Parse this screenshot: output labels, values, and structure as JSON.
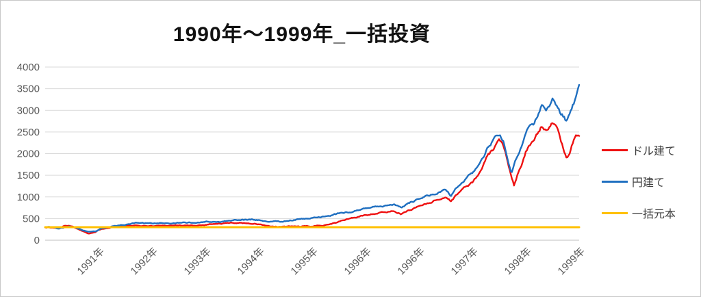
{
  "title": "1990年～1999年_一括投資",
  "chart_data": {
    "type": "line",
    "title": "1990年～1999年_一括投資",
    "xlabel": "",
    "ylabel": "",
    "ylim": [
      0,
      4000
    ],
    "yticks": [
      0,
      500,
      1000,
      1500,
      2000,
      2500,
      3000,
      3500,
      4000
    ],
    "x_tick_labels": [
      "1991年",
      "1992年",
      "1993年",
      "1994年",
      "1995年",
      "1996年",
      "1996年",
      "1997年",
      "1998年",
      "1999年"
    ],
    "grid": "horizontal",
    "legend_position": "right",
    "colors": {
      "gridline": "#d9d9d9",
      "axis_line": "#bfbfbf",
      "tick_text": "#595959",
      "title_text": "#111111"
    },
    "series": [
      {
        "name": "ドル建て",
        "color": "#ee1111",
        "stroke_width": 2.4,
        "noise_pct": 0.022,
        "points": [
          [
            0,
            300
          ],
          [
            0.13,
            290
          ],
          [
            0.26,
            278
          ],
          [
            0.38,
            335
          ],
          [
            0.45,
            345
          ],
          [
            0.55,
            300
          ],
          [
            0.68,
            225
          ],
          [
            0.81,
            165
          ],
          [
            0.94,
            190
          ],
          [
            1.06,
            268
          ],
          [
            1.19,
            300
          ],
          [
            1.32,
            312
          ],
          [
            1.47,
            330
          ],
          [
            1.73,
            330
          ],
          [
            2.0,
            330
          ],
          [
            2.24,
            340
          ],
          [
            2.5,
            345
          ],
          [
            2.76,
            335
          ],
          [
            3.0,
            360
          ],
          [
            3.14,
            385
          ],
          [
            3.27,
            378
          ],
          [
            3.44,
            395
          ],
          [
            3.59,
            405
          ],
          [
            3.74,
            398
          ],
          [
            3.87,
            390
          ],
          [
            4.0,
            368
          ],
          [
            4.17,
            330
          ],
          [
            4.29,
            300
          ],
          [
            4.42,
            305
          ],
          [
            4.55,
            315
          ],
          [
            4.74,
            315
          ],
          [
            5.0,
            318
          ],
          [
            5.19,
            345
          ],
          [
            5.45,
            410
          ],
          [
            5.71,
            505
          ],
          [
            5.83,
            530
          ],
          [
            6.0,
            580
          ],
          [
            6.15,
            620
          ],
          [
            6.35,
            640
          ],
          [
            6.54,
            680
          ],
          [
            6.67,
            605
          ],
          [
            6.83,
            700
          ],
          [
            7.0,
            790
          ],
          [
            7.18,
            870
          ],
          [
            7.37,
            950
          ],
          [
            7.5,
            1000
          ],
          [
            7.6,
            905
          ],
          [
            7.76,
            1120
          ],
          [
            7.88,
            1240
          ],
          [
            8.0,
            1330
          ],
          [
            8.14,
            1550
          ],
          [
            8.27,
            1900
          ],
          [
            8.4,
            2100
          ],
          [
            8.51,
            2280
          ],
          [
            8.59,
            2150
          ],
          [
            8.65,
            1900
          ],
          [
            8.73,
            1500
          ],
          [
            8.78,
            1290
          ],
          [
            8.86,
            1600
          ],
          [
            8.94,
            1820
          ],
          [
            9.0,
            2050
          ],
          [
            9.06,
            2200
          ],
          [
            9.14,
            2250
          ],
          [
            9.23,
            2450
          ],
          [
            9.29,
            2600
          ],
          [
            9.38,
            2550
          ],
          [
            9.46,
            2690
          ],
          [
            9.51,
            2740
          ],
          [
            9.58,
            2600
          ],
          [
            9.65,
            2300
          ],
          [
            9.72,
            2060
          ],
          [
            9.77,
            1900
          ],
          [
            9.83,
            2060
          ],
          [
            9.9,
            2330
          ],
          [
            9.95,
            2430
          ],
          [
            10,
            2420
          ]
        ]
      },
      {
        "name": "円建て",
        "color": "#1f6fc0",
        "stroke_width": 2.4,
        "noise_pct": 0.022,
        "points": [
          [
            0,
            300
          ],
          [
            0.13,
            288
          ],
          [
            0.26,
            272
          ],
          [
            0.38,
            305
          ],
          [
            0.45,
            310
          ],
          [
            0.55,
            285
          ],
          [
            0.68,
            235
          ],
          [
            0.81,
            188
          ],
          [
            0.94,
            210
          ],
          [
            1.06,
            278
          ],
          [
            1.19,
            305
          ],
          [
            1.32,
            330
          ],
          [
            1.47,
            360
          ],
          [
            1.73,
            405
          ],
          [
            2.0,
            390
          ],
          [
            2.24,
            400
          ],
          [
            2.5,
            410
          ],
          [
            2.76,
            400
          ],
          [
            3.0,
            420
          ],
          [
            3.14,
            432
          ],
          [
            3.27,
            425
          ],
          [
            3.44,
            455
          ],
          [
            3.59,
            462
          ],
          [
            3.74,
            470
          ],
          [
            3.87,
            480
          ],
          [
            4.0,
            458
          ],
          [
            4.17,
            435
          ],
          [
            4.29,
            440
          ],
          [
            4.42,
            425
          ],
          [
            4.55,
            460
          ],
          [
            4.74,
            480
          ],
          [
            5.0,
            505
          ],
          [
            5.19,
            550
          ],
          [
            5.45,
            600
          ],
          [
            5.71,
            660
          ],
          [
            5.83,
            690
          ],
          [
            6.0,
            740
          ],
          [
            6.15,
            780
          ],
          [
            6.35,
            800
          ],
          [
            6.54,
            840
          ],
          [
            6.67,
            762
          ],
          [
            6.83,
            862
          ],
          [
            7.0,
            950
          ],
          [
            7.18,
            1035
          ],
          [
            7.37,
            1120
          ],
          [
            7.5,
            1145
          ],
          [
            7.6,
            1035
          ],
          [
            7.76,
            1300
          ],
          [
            7.88,
            1440
          ],
          [
            8.0,
            1560
          ],
          [
            8.14,
            1800
          ],
          [
            8.27,
            2100
          ],
          [
            8.4,
            2300
          ],
          [
            8.51,
            2450
          ],
          [
            8.59,
            2260
          ],
          [
            8.65,
            1980
          ],
          [
            8.73,
            1600
          ],
          [
            8.78,
            1760
          ],
          [
            8.86,
            1990
          ],
          [
            8.94,
            2230
          ],
          [
            9.0,
            2420
          ],
          [
            9.06,
            2600
          ],
          [
            9.14,
            2650
          ],
          [
            9.23,
            2900
          ],
          [
            9.29,
            3080
          ],
          [
            9.38,
            3000
          ],
          [
            9.46,
            3190
          ],
          [
            9.51,
            3290
          ],
          [
            9.58,
            3100
          ],
          [
            9.65,
            2950
          ],
          [
            9.72,
            2840
          ],
          [
            9.77,
            2730
          ],
          [
            9.83,
            2930
          ],
          [
            9.9,
            3150
          ],
          [
            9.95,
            3350
          ],
          [
            10,
            3550
          ]
        ]
      },
      {
        "name": "一括元本",
        "color": "#ffc000",
        "stroke_width": 3,
        "noise_pct": 0,
        "points": [
          [
            0,
            300
          ],
          [
            10,
            300
          ]
        ]
      }
    ]
  }
}
